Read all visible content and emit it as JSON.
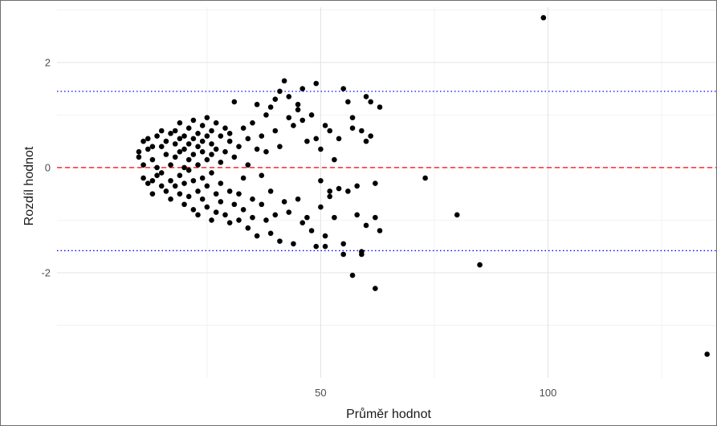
{
  "chart_data": {
    "type": "scatter",
    "title": "",
    "xlabel": "Průměr hodnot",
    "ylabel": "Rozdíl hodnot",
    "xlim": [
      -8,
      137
    ],
    "ylim": [
      -4.0,
      3.05
    ],
    "x_ticks": [
      50,
      100
    ],
    "x_tick_labels": [
      "50",
      "100"
    ],
    "y_ticks": [
      -2,
      0,
      2
    ],
    "y_tick_labels": [
      "-2",
      "0",
      "2"
    ],
    "grid": true,
    "legend": "none",
    "reference_lines": [
      {
        "kind": "mean",
        "y": 0.0,
        "color": "#ff0000",
        "style": "dashed"
      },
      {
        "kind": "upper-limit",
        "y": 1.45,
        "color": "#0000ff",
        "style": "dotted"
      },
      {
        "kind": "lower-limit",
        "y": -1.58,
        "color": "#0000ff",
        "style": "dotted"
      }
    ],
    "series": [
      {
        "color": "#000000",
        "points": [
          [
            10,
            0.3
          ],
          [
            10,
            0.2
          ],
          [
            11,
            0.5
          ],
          [
            11,
            -0.2
          ],
          [
            11,
            0.05
          ],
          [
            12,
            0.35
          ],
          [
            12,
            -0.3
          ],
          [
            12,
            0.55
          ],
          [
            13,
            -0.25
          ],
          [
            13,
            0.4
          ],
          [
            13,
            -0.5
          ],
          [
            13,
            0.15
          ],
          [
            14,
            0.6
          ],
          [
            14,
            -0.15
          ],
          [
            14,
            0.0
          ],
          [
            15,
            0.4
          ],
          [
            15,
            -0.35
          ],
          [
            15,
            0.7
          ],
          [
            15,
            -0.1
          ],
          [
            16,
            0.5
          ],
          [
            16,
            -0.45
          ],
          [
            16,
            0.25
          ],
          [
            17,
            0.65
          ],
          [
            17,
            -0.25
          ],
          [
            17,
            0.05
          ],
          [
            17,
            -0.6
          ],
          [
            18,
            0.45
          ],
          [
            18,
            0.7
          ],
          [
            18,
            -0.35
          ],
          [
            18,
            0.2
          ],
          [
            19,
            0.55
          ],
          [
            19,
            -0.15
          ],
          [
            19,
            0.85
          ],
          [
            19,
            -0.5
          ],
          [
            19,
            0.3
          ],
          [
            20,
            0.0
          ],
          [
            20,
            0.6
          ],
          [
            20,
            -0.7
          ],
          [
            20,
            0.35
          ],
          [
            20,
            -0.3
          ],
          [
            21,
            0.75
          ],
          [
            21,
            -0.05
          ],
          [
            21,
            0.45
          ],
          [
            21,
            -0.55
          ],
          [
            21,
            0.15
          ],
          [
            22,
            0.9
          ],
          [
            22,
            -0.25
          ],
          [
            22,
            0.55
          ],
          [
            22,
            -0.8
          ],
          [
            22,
            0.25
          ],
          [
            23,
            0.65
          ],
          [
            23,
            -0.45
          ],
          [
            23,
            0.05
          ],
          [
            23,
            0.4
          ],
          [
            23,
            -0.9
          ],
          [
            24,
            0.5
          ],
          [
            24,
            -0.2
          ],
          [
            24,
            0.8
          ],
          [
            24,
            -0.6
          ],
          [
            24,
            0.3
          ],
          [
            25,
            0.6
          ],
          [
            25,
            -0.35
          ],
          [
            25,
            0.95
          ],
          [
            25,
            -0.75
          ],
          [
            25,
            0.15
          ],
          [
            26,
            0.45
          ],
          [
            26,
            -0.1
          ],
          [
            26,
            0.7
          ],
          [
            26,
            -1.0
          ],
          [
            26,
            0.25
          ],
          [
            27,
            0.85
          ],
          [
            27,
            -0.5
          ],
          [
            27,
            0.35
          ],
          [
            27,
            -0.85
          ],
          [
            28,
            0.6
          ],
          [
            28,
            -0.3
          ],
          [
            28,
            0.1
          ],
          [
            28,
            -0.65
          ],
          [
            29,
            0.75
          ],
          [
            29,
            -0.9
          ],
          [
            29,
            0.3
          ],
          [
            30,
            0.5
          ],
          [
            30,
            -0.45
          ],
          [
            30,
            0.65
          ],
          [
            30,
            -1.05
          ],
          [
            31,
            0.2
          ],
          [
            31,
            -0.7
          ],
          [
            31,
            1.25
          ],
          [
            32,
            0.4
          ],
          [
            32,
            -0.5
          ],
          [
            32,
            -1.0
          ],
          [
            33,
            0.75
          ],
          [
            33,
            -0.8
          ],
          [
            33,
            -0.2
          ],
          [
            34,
            0.55
          ],
          [
            34,
            -1.15
          ],
          [
            34,
            0.05
          ],
          [
            35,
            0.85
          ],
          [
            35,
            -0.6
          ],
          [
            35,
            -0.95
          ],
          [
            36,
            0.35
          ],
          [
            36,
            -1.3
          ],
          [
            36,
            1.2
          ],
          [
            37,
            0.6
          ],
          [
            37,
            -0.7
          ],
          [
            37,
            -0.15
          ],
          [
            38,
            1.0
          ],
          [
            38,
            -1.0
          ],
          [
            38,
            0.3
          ],
          [
            39,
            1.15
          ],
          [
            39,
            -0.45
          ],
          [
            39,
            -1.25
          ],
          [
            40,
            0.7
          ],
          [
            40,
            1.3
          ],
          [
            40,
            -0.9
          ],
          [
            41,
            1.45
          ],
          [
            41,
            -1.4
          ],
          [
            41,
            0.4
          ],
          [
            42,
            1.65
          ],
          [
            42,
            -0.65
          ],
          [
            43,
            0.95
          ],
          [
            43,
            1.35
          ],
          [
            43,
            -0.85
          ],
          [
            44,
            0.8
          ],
          [
            44,
            -1.45
          ],
          [
            45,
            1.1
          ],
          [
            45,
            1.2
          ],
          [
            45,
            -0.6
          ],
          [
            46,
            0.9
          ],
          [
            46,
            1.5
          ],
          [
            46,
            -1.05
          ],
          [
            47,
            0.5
          ],
          [
            47,
            -0.95
          ],
          [
            48,
            1.0
          ],
          [
            48,
            -1.2
          ],
          [
            49,
            1.6
          ],
          [
            49,
            0.55
          ],
          [
            49,
            -1.5
          ],
          [
            50,
            0.35
          ],
          [
            50,
            -0.25
          ],
          [
            50,
            -0.75
          ],
          [
            51,
            0.8
          ],
          [
            51,
            -1.3
          ],
          [
            51,
            -1.5
          ],
          [
            52,
            0.7
          ],
          [
            52,
            -0.45
          ],
          [
            52,
            -0.55
          ],
          [
            53,
            0.15
          ],
          [
            53,
            -0.95
          ],
          [
            54,
            0.55
          ],
          [
            54,
            -0.4
          ],
          [
            55,
            1.5
          ],
          [
            55,
            -1.65
          ],
          [
            55,
            -1.45
          ],
          [
            56,
            1.25
          ],
          [
            56,
            -0.45
          ],
          [
            57,
            0.95
          ],
          [
            57,
            0.75
          ],
          [
            57,
            -2.05
          ],
          [
            58,
            -0.35
          ],
          [
            58,
            -0.9
          ],
          [
            59,
            0.7
          ],
          [
            59,
            -1.6
          ],
          [
            59,
            -1.65
          ],
          [
            60,
            1.35
          ],
          [
            60,
            0.5
          ],
          [
            60,
            -1.1
          ],
          [
            61,
            1.25
          ],
          [
            61,
            0.6
          ],
          [
            62,
            -0.3
          ],
          [
            62,
            -2.3
          ],
          [
            62,
            -0.95
          ],
          [
            63,
            1.15
          ],
          [
            63,
            -1.2
          ],
          [
            73,
            -0.2
          ],
          [
            80,
            -0.9
          ],
          [
            85,
            -1.85
          ],
          [
            99,
            2.85
          ],
          [
            135,
            -3.55
          ]
        ]
      }
    ]
  }
}
